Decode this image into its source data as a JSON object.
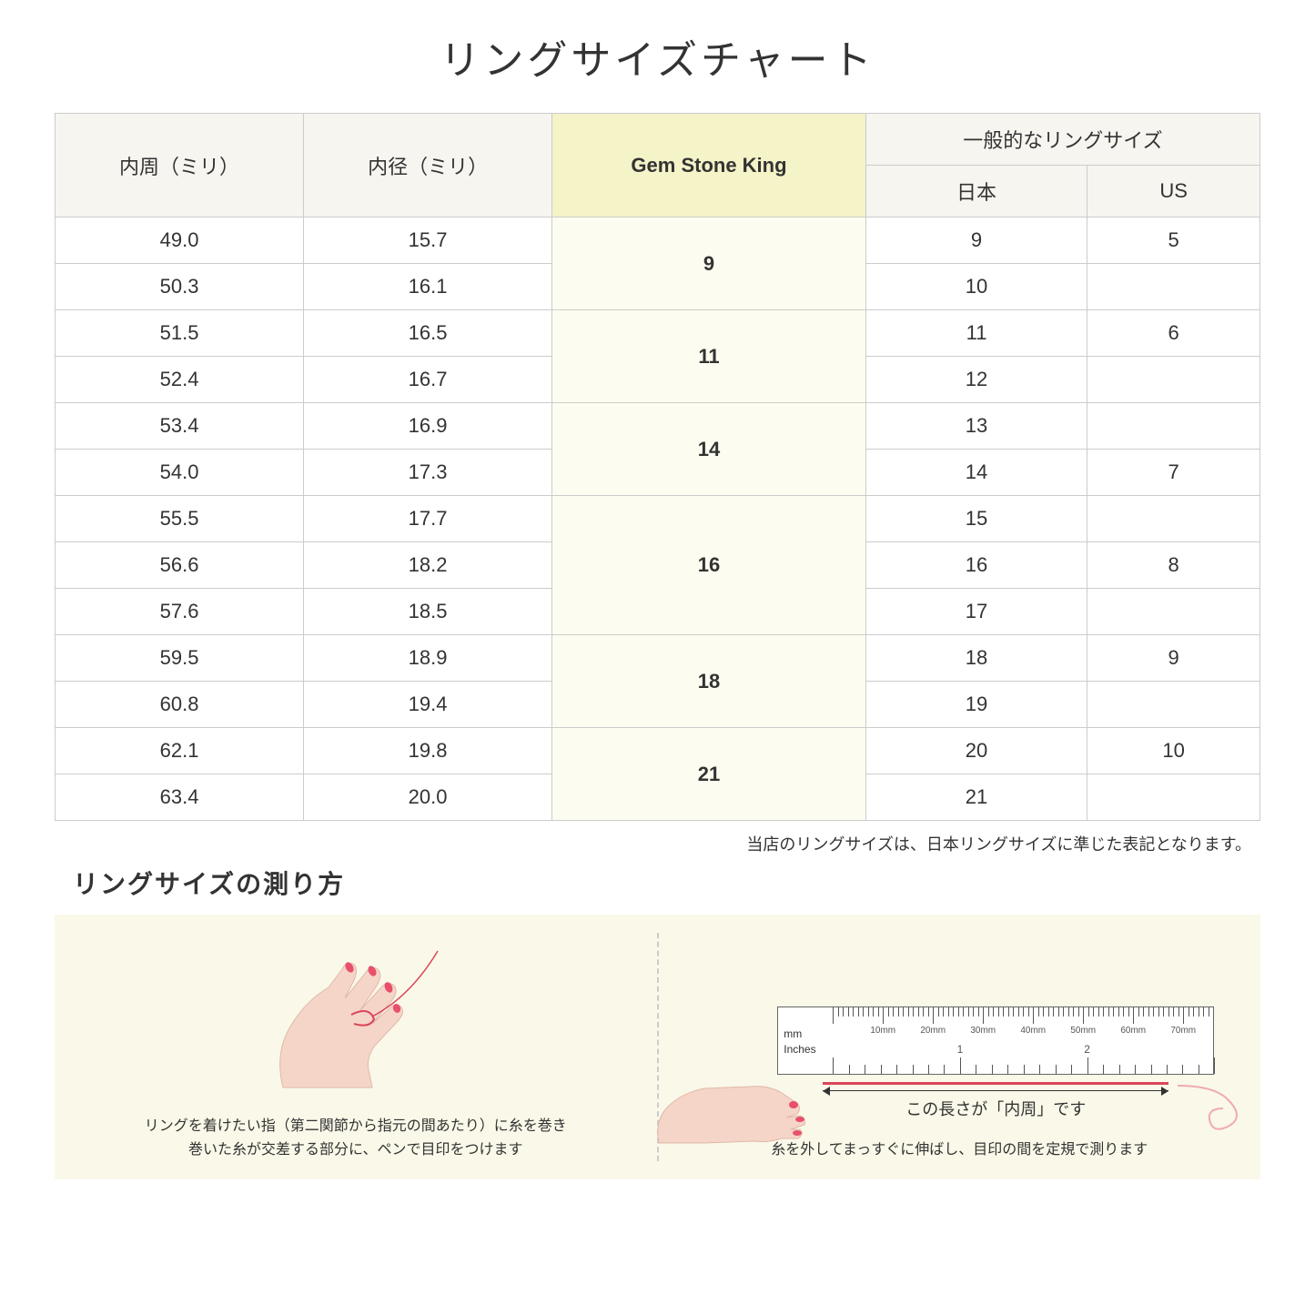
{
  "title": "リングサイズチャート",
  "headers": {
    "circumference": "内周（ミリ）",
    "diameter": "内径（ミリ）",
    "brand": "Gem Stone King",
    "general": "一般的なリングサイズ",
    "japan": "日本",
    "us": "US"
  },
  "rows": [
    {
      "c": "49.0",
      "d": "15.7",
      "j": "9",
      "u": "5"
    },
    {
      "c": "50.3",
      "d": "16.1",
      "j": "10",
      "u": ""
    },
    {
      "c": "51.5",
      "d": "16.5",
      "j": "11",
      "u": "6"
    },
    {
      "c": "52.4",
      "d": "16.7",
      "j": "12",
      "u": ""
    },
    {
      "c": "53.4",
      "d": "16.9",
      "j": "13",
      "u": ""
    },
    {
      "c": "54.0",
      "d": "17.3",
      "j": "14",
      "u": "7"
    },
    {
      "c": "55.5",
      "d": "17.7",
      "j": "15",
      "u": ""
    },
    {
      "c": "56.6",
      "d": "18.2",
      "j": "16",
      "u": "8"
    },
    {
      "c": "57.6",
      "d": "18.5",
      "j": "17",
      "u": ""
    },
    {
      "c": "59.5",
      "d": "18.9",
      "j": "18",
      "u": "9"
    },
    {
      "c": "60.8",
      "d": "19.4",
      "j": "19",
      "u": ""
    },
    {
      "c": "62.1",
      "d": "19.8",
      "j": "20",
      "u": "10"
    },
    {
      "c": "63.4",
      "d": "20.0",
      "j": "21",
      "u": ""
    }
  ],
  "brand_groups": [
    {
      "label": "9",
      "span": 2
    },
    {
      "label": "11",
      "span": 2
    },
    {
      "label": "14",
      "span": 2
    },
    {
      "label": "16",
      "span": 3
    },
    {
      "label": "18",
      "span": 2
    },
    {
      "label": "21",
      "span": 2
    }
  ],
  "note": "当店のリングサイズは、日本リングサイズに準じた表記となります。",
  "subtitle": "リングサイズの測り方",
  "step1": "リングを着けたい指（第二関節から指元の間あたり）に糸を巻き\n巻いた糸が交差する部分に、ペンで目印をつけます",
  "step2": "糸を外してまっすぐに伸ばし、目印の間を定規で測ります",
  "measure_label": "この長さが「内周」です",
  "ruler": {
    "mm_label": "mm",
    "inches_label": "Inches",
    "mm_ticks": [
      "10mm",
      "20mm",
      "30mm",
      "40mm",
      "50mm",
      "60mm",
      "70mm"
    ],
    "inch_ticks": [
      "1",
      "2"
    ]
  },
  "colors": {
    "header_bg": "#f7f5f0",
    "highlight_bg": "#f5f3c8",
    "highlight_cell_bg": "#fdfcf0",
    "instruction_bg": "#faf8e8",
    "thread": "#d9465a",
    "skin": "#f5d5c8",
    "nail": "#e8506b"
  }
}
